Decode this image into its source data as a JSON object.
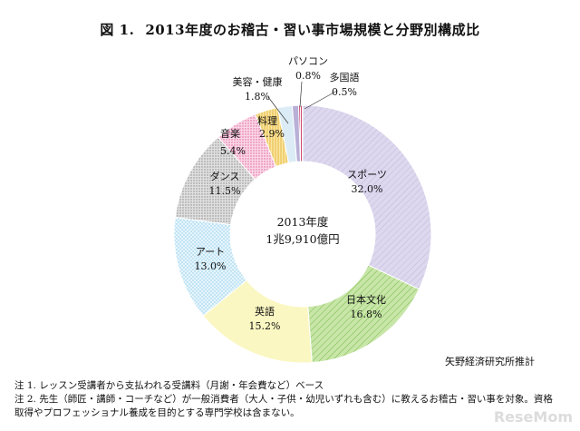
{
  "title": {
    "figure": "図 1.",
    "text": "2013年度のお稽古・習い事市場規模と分野別構成比"
  },
  "center_label": {
    "line1": "2013年度",
    "line2": "1兆9,910億円"
  },
  "source": "矢野経済研究所推計",
  "notes": [
    "注 1. レッスン受講者から支払われる受講料（月謝・年会費など）ベース",
    "注 2. 先生（師匠・講師・コーチなど）が一般消費者（大人・子供・幼児いずれも含む）に教えるお稽古・習い事を対象。資格",
    "取得やプロフェッショナル養成を目的とする専門学校は含まない。"
  ],
  "logo": "ReseMom",
  "chart_data": {
    "type": "pie",
    "donut": true,
    "categories": [
      "スポーツ",
      "日本文化",
      "英語",
      "アート",
      "ダンス",
      "音楽",
      "料理",
      "美容・健康",
      "パソコン",
      "多国語"
    ],
    "values": [
      32.0,
      16.8,
      15.2,
      13.0,
      11.5,
      5.4,
      2.9,
      1.8,
      0.8,
      0.5
    ],
    "value_labels": [
      "32.0%",
      "16.8%",
      "15.2%",
      "13.0%",
      "11.5%",
      "5.4%",
      "2.9%",
      "1.8%",
      "0.8%",
      "0.5%"
    ],
    "fill_colors": [
      "#ddd8ee",
      "#c8e6a8",
      "#fbf7c2",
      "#dcf0fa",
      "#d6d6d6",
      "#f7cfe0",
      "#fbe6a2",
      "#dcecf6",
      "#b9b0d8",
      "#c62a5a"
    ],
    "patterns": [
      "diag-lavender",
      "diag-green",
      "plain",
      "dots-blue",
      "dots-gray",
      "dots-pink",
      "vlines-yellow",
      "plain",
      "plain",
      "vlines-red"
    ]
  }
}
